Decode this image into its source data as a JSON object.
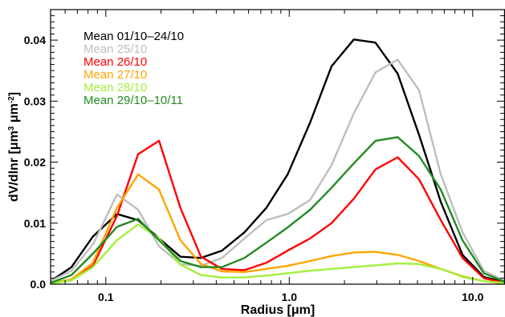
{
  "chart_data": {
    "type": "line",
    "xlabel": "Radius [μm]",
    "ylabel_main": "dV/dlnr [μm",
    "ylabel_sup1": "3",
    "ylabel_mid": " μm",
    "ylabel_sup2": "-2",
    "ylabel_end": "]",
    "x_scale": "log",
    "xlim": [
      0.05,
      15.0
    ],
    "ylim": [
      0.0,
      0.045
    ],
    "x_ticks": [
      {
        "value": 0.1,
        "label": "0.1"
      },
      {
        "value": 1.0,
        "label": "1.0"
      },
      {
        "value": 10.0,
        "label": "10.0"
      }
    ],
    "y_ticks": [
      {
        "value": 0.0,
        "label": "0.0"
      },
      {
        "value": 0.01,
        "label": "0.01"
      },
      {
        "value": 0.02,
        "label": "0.02"
      },
      {
        "value": 0.03,
        "label": "0.03"
      },
      {
        "value": 0.04,
        "label": "0.04"
      }
    ],
    "grid": false,
    "legend_position": "top-left",
    "x": [
      0.05,
      0.065,
      0.085,
      0.115,
      0.15,
      0.195,
      0.255,
      0.33,
      0.43,
      0.57,
      0.75,
      0.98,
      1.3,
      1.7,
      2.25,
      2.95,
      3.9,
      5.1,
      6.7,
      8.8,
      11.5,
      15.0
    ],
    "series": [
      {
        "name": "Mean 01/10–24/10",
        "color": "#000000",
        "values": [
          0.0005,
          0.0028,
          0.0078,
          0.0115,
          0.0105,
          0.0075,
          0.0045,
          0.0043,
          0.0055,
          0.0085,
          0.0125,
          0.018,
          0.0265,
          0.0357,
          0.0401,
          0.0396,
          0.0345,
          0.0245,
          0.0135,
          0.0048,
          0.0012,
          0.0003
        ]
      },
      {
        "name": "Mean 25/10",
        "color": "#bebebe",
        "values": [
          0.0005,
          0.0022,
          0.0065,
          0.0147,
          0.0122,
          0.0062,
          0.0033,
          0.003,
          0.0043,
          0.0075,
          0.0105,
          0.0115,
          0.0138,
          0.0195,
          0.028,
          0.0347,
          0.0368,
          0.0318,
          0.018,
          0.0085,
          0.0022,
          0.0005
        ]
      },
      {
        "name": "Mean 26/10",
        "color": "#ff0000",
        "values": [
          0.0001,
          0.0007,
          0.003,
          0.0112,
          0.0213,
          0.0235,
          0.0125,
          0.0045,
          0.0025,
          0.0023,
          0.0035,
          0.0055,
          0.0075,
          0.01,
          0.014,
          0.0188,
          0.0208,
          0.0172,
          0.0105,
          0.0043,
          0.001,
          0.0002
        ]
      },
      {
        "name": "Mean 27/10",
        "color": "#ffa500",
        "values": [
          0.0001,
          0.0008,
          0.0035,
          0.0125,
          0.018,
          0.0155,
          0.0072,
          0.0033,
          0.0021,
          0.002,
          0.0025,
          0.003,
          0.0038,
          0.0046,
          0.0052,
          0.0053,
          0.0048,
          0.0038,
          0.0025,
          0.0013,
          0.0005,
          0.0001
        ]
      },
      {
        "name": "Mean 28/10",
        "color": "#a3f03c",
        "values": [
          0.0001,
          0.0006,
          0.0028,
          0.0072,
          0.0098,
          0.0075,
          0.0032,
          0.0015,
          0.0011,
          0.0011,
          0.0014,
          0.0018,
          0.0022,
          0.0025,
          0.0028,
          0.0031,
          0.0034,
          0.0033,
          0.0025,
          0.0012,
          0.0005,
          0.0002
        ]
      },
      {
        "name": "Mean 29/10–10/11",
        "color": "#228b22",
        "values": [
          0.0002,
          0.0015,
          0.005,
          0.0094,
          0.0107,
          0.0072,
          0.0038,
          0.0028,
          0.0028,
          0.0043,
          0.0068,
          0.0093,
          0.0122,
          0.0158,
          0.0198,
          0.0235,
          0.0241,
          0.021,
          0.0155,
          0.0072,
          0.0018,
          0.0004
        ]
      }
    ]
  }
}
